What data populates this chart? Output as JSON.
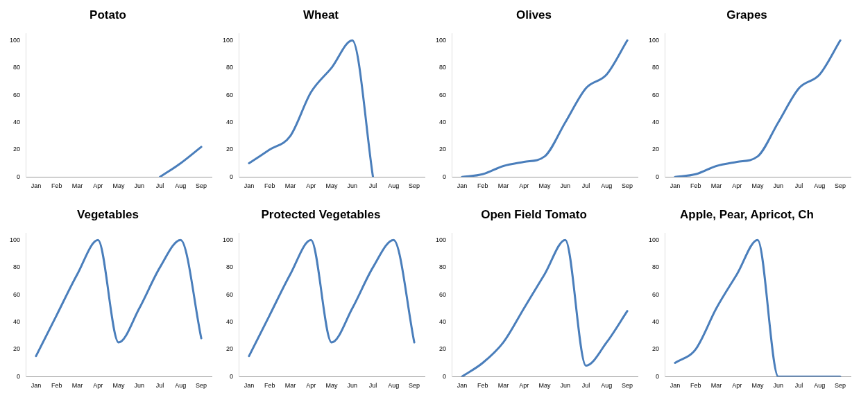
{
  "chart_data": [
    {
      "type": "line",
      "title": "Potato",
      "categories": [
        "Jan",
        "Feb",
        "Mar",
        "Apr",
        "May",
        "Jun",
        "Jul",
        "Aug",
        "Sep"
      ],
      "series": [
        {
          "color": "#4a7ebb",
          "values": [
            null,
            null,
            null,
            null,
            null,
            null,
            0,
            10,
            22
          ]
        }
      ],
      "ylim": [
        0,
        105
      ],
      "yticks": [
        0,
        20,
        40,
        60,
        80,
        100
      ],
      "grid": false,
      "legend": false
    },
    {
      "type": "line",
      "title": "Wheat",
      "categories": [
        "Jan",
        "Feb",
        "Mar",
        "Apr",
        "May",
        "Jun",
        "Jul",
        "Aug",
        "Sep"
      ],
      "series": [
        {
          "color": "#4a7ebb",
          "values": [
            10,
            20,
            30,
            62,
            80,
            100,
            0,
            null,
            null
          ]
        }
      ],
      "ylim": [
        0,
        105
      ],
      "yticks": [
        0,
        20,
        40,
        60,
        80,
        100
      ],
      "grid": false,
      "legend": false
    },
    {
      "type": "line",
      "title": "Olives",
      "categories": [
        "Jan",
        "Feb",
        "Mar",
        "Apr",
        "May",
        "Jun",
        "Jul",
        "Aug",
        "Sep"
      ],
      "series": [
        {
          "color": "#4a7ebb",
          "values": [
            0,
            2,
            8,
            11,
            15,
            40,
            65,
            75,
            100
          ]
        }
      ],
      "ylim": [
        0,
        105
      ],
      "yticks": [
        0,
        20,
        40,
        60,
        80,
        100
      ],
      "grid": false,
      "legend": false
    },
    {
      "type": "line",
      "title": "Grapes",
      "categories": [
        "Jan",
        "Feb",
        "Mar",
        "Apr",
        "May",
        "Jun",
        "Jul",
        "Aug",
        "Sep"
      ],
      "series": [
        {
          "color": "#4a7ebb",
          "values": [
            0,
            2,
            8,
            11,
            15,
            40,
            65,
            75,
            100
          ]
        }
      ],
      "ylim": [
        0,
        105
      ],
      "yticks": [
        0,
        20,
        40,
        60,
        80,
        100
      ],
      "grid": false,
      "legend": false
    },
    {
      "type": "line",
      "title": "Vegetables",
      "categories": [
        "Jan",
        "Feb",
        "Mar",
        "Apr",
        "May",
        "Jun",
        "Jul",
        "Aug",
        "Sep"
      ],
      "series": [
        {
          "color": "#4a7ebb",
          "values": [
            15,
            45,
            75,
            100,
            25,
            50,
            80,
            100,
            28
          ]
        }
      ],
      "ylim": [
        0,
        105
      ],
      "yticks": [
        0,
        20,
        40,
        60,
        80,
        100
      ],
      "grid": false,
      "legend": false
    },
    {
      "type": "line",
      "title": "Protected Vegetables",
      "categories": [
        "Jan",
        "Feb",
        "Mar",
        "Apr",
        "May",
        "Jun",
        "Jul",
        "Aug",
        "Sep"
      ],
      "series": [
        {
          "color": "#4a7ebb",
          "values": [
            15,
            45,
            75,
            100,
            25,
            50,
            80,
            100,
            25
          ]
        }
      ],
      "ylim": [
        0,
        105
      ],
      "yticks": [
        0,
        20,
        40,
        60,
        80,
        100
      ],
      "grid": false,
      "legend": false
    },
    {
      "type": "line",
      "title": "Open Field Tomato",
      "categories": [
        "Jan",
        "Feb",
        "Mar",
        "Apr",
        "May",
        "Jun",
        "Jul",
        "Aug",
        "Sep"
      ],
      "series": [
        {
          "color": "#4a7ebb",
          "values": [
            0,
            10,
            25,
            50,
            75,
            100,
            8,
            25,
            48
          ]
        }
      ],
      "ylim": [
        0,
        105
      ],
      "yticks": [
        0,
        20,
        40,
        60,
        80,
        100
      ],
      "grid": false,
      "legend": false
    },
    {
      "type": "line",
      "title": "Apple, Pear, Apricot, Ch",
      "categories": [
        "Jan",
        "Feb",
        "Mar",
        "Apr",
        "May",
        "Jun",
        "Jul",
        "Aug",
        "Sep"
      ],
      "series": [
        {
          "color": "#4a7ebb",
          "values": [
            10,
            20,
            50,
            75,
            100,
            0,
            0,
            0,
            0
          ]
        }
      ],
      "ylim": [
        0,
        105
      ],
      "yticks": [
        0,
        20,
        40,
        60,
        80,
        100
      ],
      "grid": false,
      "legend": false
    }
  ]
}
